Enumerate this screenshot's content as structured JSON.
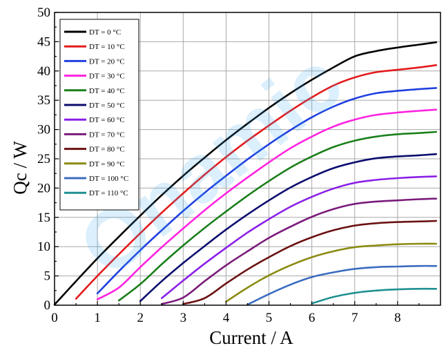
{
  "chart_data": {
    "type": "line",
    "xlabel": "Current / A",
    "ylabel": "Qc / W",
    "xlim": [
      0,
      9
    ],
    "ylim": [
      0,
      50
    ],
    "xticks": [
      0,
      1,
      2,
      3,
      4,
      5,
      6,
      7,
      8
    ],
    "yticks": [
      0,
      5,
      10,
      15,
      20,
      25,
      30,
      35,
      40,
      45,
      50
    ],
    "grid": true,
    "legend_position": "top-left",
    "watermark": "Onamic",
    "x": [
      0,
      0.5,
      1,
      1.5,
      2,
      2.5,
      3,
      3.5,
      4,
      4.5,
      5,
      5.5,
      6,
      6.5,
      7,
      7.5,
      8,
      8.5,
      8.9
    ],
    "series": [
      {
        "name": "DT = 0 °C",
        "color": "#000000",
        "values": [
          0.1,
          4.1,
          8.0,
          11.7,
          15.3,
          18.8,
          22.1,
          25.2,
          28.2,
          31.0,
          33.7,
          36.2,
          38.5,
          40.6,
          42.5,
          43.4,
          44.0,
          44.5,
          44.9
        ]
      },
      {
        "name": "DT = 10 °C",
        "color": "#e31a1c",
        "values": [
          null,
          1.1,
          5.0,
          8.7,
          12.3,
          15.8,
          19.1,
          22.3,
          25.3,
          28.1,
          30.7,
          33.2,
          35.5,
          37.5,
          38.9,
          39.8,
          40.2,
          40.6,
          41.0
        ]
      },
      {
        "name": "DT = 20 °C",
        "color": "#1f3fe0",
        "values": [
          null,
          null,
          2.0,
          5.8,
          9.4,
          12.8,
          16.1,
          19.2,
          22.1,
          24.9,
          27.5,
          29.9,
          32.1,
          33.9,
          35.3,
          36.2,
          36.6,
          36.9,
          37.1
        ]
      },
      {
        "name": "DT = 30 °C",
        "color": "#ff22e0",
        "values": [
          null,
          null,
          1.0,
          3.0,
          6.5,
          9.9,
          13.1,
          16.2,
          19.1,
          21.8,
          24.4,
          26.8,
          28.8,
          30.5,
          31.7,
          32.5,
          32.9,
          33.2,
          33.4
        ]
      },
      {
        "name": "DT = 40 °C",
        "color": "#1a7f1a",
        "values": [
          null,
          null,
          null,
          0.8,
          3.6,
          7.0,
          10.2,
          13.2,
          16.0,
          18.7,
          21.2,
          23.5,
          25.4,
          27.0,
          28.1,
          28.8,
          29.2,
          29.4,
          29.6
        ]
      },
      {
        "name": "DT = 50 °C",
        "color": "#0b0b6e",
        "values": [
          null,
          null,
          null,
          null,
          0.7,
          4.1,
          7.2,
          10.1,
          12.9,
          15.5,
          17.9,
          20.1,
          21.9,
          23.4,
          24.4,
          25.1,
          25.4,
          25.6,
          25.8
        ]
      },
      {
        "name": "DT = 60 °C",
        "color": "#8a1fe6",
        "values": [
          null,
          null,
          null,
          null,
          null,
          1.2,
          4.2,
          7.1,
          9.8,
          12.4,
          14.7,
          16.8,
          18.5,
          19.9,
          20.9,
          21.4,
          21.7,
          21.9,
          22.0
        ]
      },
      {
        "name": "DT = 70 °C",
        "color": "#7a1a7a",
        "values": [
          null,
          null,
          null,
          null,
          null,
          0.2,
          1.3,
          4.1,
          6.8,
          9.2,
          11.5,
          13.4,
          15.1,
          16.4,
          17.3,
          17.7,
          17.9,
          18.1,
          18.2
        ]
      },
      {
        "name": "DT = 80 °C",
        "color": "#6b1010",
        "values": [
          null,
          null,
          null,
          null,
          null,
          null,
          0.2,
          1.2,
          3.7,
          6.1,
          8.2,
          10.1,
          11.6,
          12.8,
          13.6,
          14.0,
          14.2,
          14.3,
          14.4
        ]
      },
      {
        "name": "DT = 90 °C",
        "color": "#8a8a10",
        "values": [
          null,
          null,
          null,
          null,
          null,
          null,
          null,
          null,
          0.6,
          3.0,
          5.1,
          6.8,
          8.2,
          9.2,
          9.9,
          10.2,
          10.4,
          10.5,
          10.5
        ]
      },
      {
        "name": "DT = 100 °C",
        "color": "#3a6bbf",
        "values": [
          null,
          null,
          null,
          null,
          null,
          null,
          null,
          null,
          null,
          0.1,
          1.9,
          3.5,
          4.8,
          5.6,
          6.2,
          6.5,
          6.6,
          6.7,
          6.7
        ]
      },
      {
        "name": "DT = 110 °C",
        "color": "#1f9090",
        "values": [
          null,
          null,
          null,
          null,
          null,
          null,
          null,
          null,
          null,
          null,
          null,
          null,
          0.3,
          1.4,
          2.1,
          2.5,
          2.7,
          2.8,
          2.8
        ]
      }
    ]
  }
}
